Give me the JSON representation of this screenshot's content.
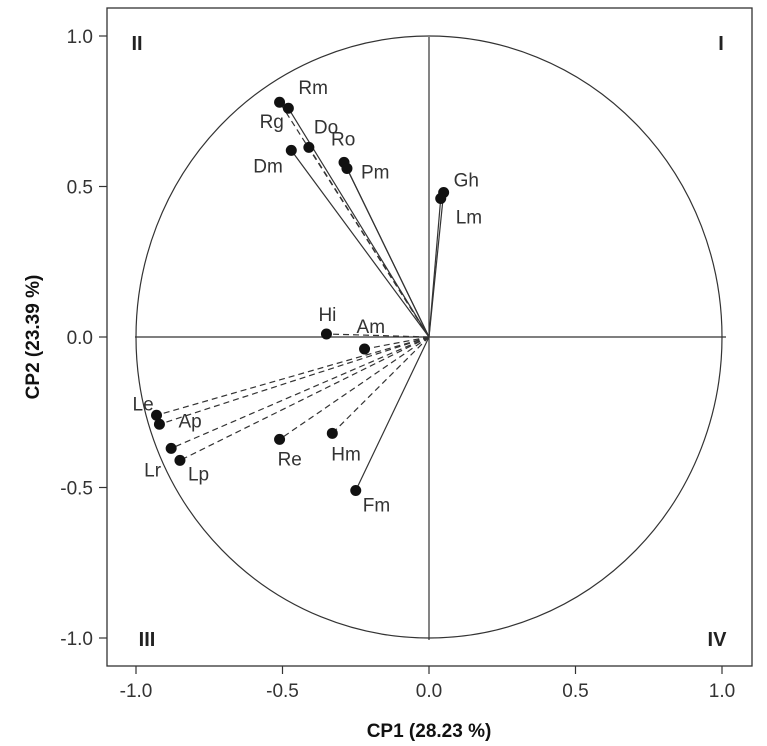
{
  "chart_data": {
    "type": "scatter",
    "subtype": "pca-correlation-circle",
    "xlabel": "CP1 (28.23 %)",
    "ylabel": "CP2 (23.39 %)",
    "xlim": [
      -1.0,
      1.0
    ],
    "ylim": [
      -1.0,
      1.0
    ],
    "x_ticks": [
      "-1.0",
      "-0.5",
      "0.0",
      "0.5",
      "1.0"
    ],
    "y_ticks": [
      "1.0",
      "0.5",
      "0.0",
      "-0.5",
      "-1.0"
    ],
    "grid": false,
    "unit_circle": true,
    "quadrant_labels": [
      "I",
      "II",
      "III",
      "IV"
    ],
    "points": [
      {
        "label": "Rm",
        "x": -0.48,
        "y": 0.76,
        "line": "solid"
      },
      {
        "label": "Rg",
        "x": -0.51,
        "y": 0.78,
        "line": "dashed"
      },
      {
        "label": "Do",
        "x": -0.41,
        "y": 0.63,
        "line": "dashed"
      },
      {
        "label": "Dm",
        "x": -0.47,
        "y": 0.62,
        "line": "solid"
      },
      {
        "label": "Ro",
        "x": -0.29,
        "y": 0.58,
        "line": "solid"
      },
      {
        "label": "Pm",
        "x": -0.28,
        "y": 0.56,
        "line": "solid"
      },
      {
        "label": "Gh",
        "x": 0.05,
        "y": 0.48,
        "line": "solid"
      },
      {
        "label": "Lm",
        "x": 0.04,
        "y": 0.46,
        "line": "solid"
      },
      {
        "label": "Hi",
        "x": -0.35,
        "y": 0.01,
        "line": "dashed"
      },
      {
        "label": "Am",
        "x": -0.22,
        "y": -0.04,
        "line": "dashed"
      },
      {
        "label": "Le",
        "x": -0.93,
        "y": -0.26,
        "line": "dashed"
      },
      {
        "label": "Ap",
        "x": -0.92,
        "y": -0.29,
        "line": "dashed"
      },
      {
        "label": "Lr",
        "x": -0.88,
        "y": -0.37,
        "line": "dashed"
      },
      {
        "label": "Lp",
        "x": -0.85,
        "y": -0.41,
        "line": "dashed"
      },
      {
        "label": "Re",
        "x": -0.51,
        "y": -0.34,
        "line": "dashed"
      },
      {
        "label": "Hm",
        "x": -0.33,
        "y": -0.32,
        "line": "dashed"
      },
      {
        "label": "Fm",
        "x": -0.25,
        "y": -0.51,
        "line": "solid"
      }
    ]
  }
}
